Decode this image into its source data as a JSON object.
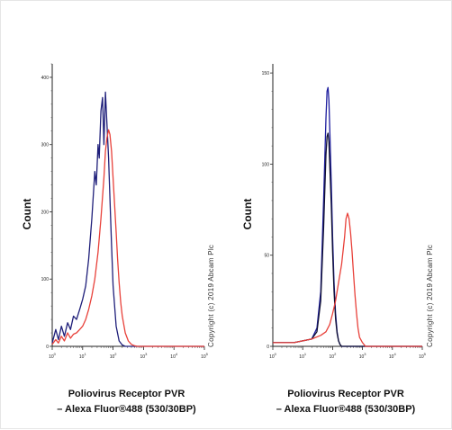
{
  "chart_data": [
    {
      "type": "line",
      "panel": "left",
      "ylabel": "Count",
      "xlabel_line1": "Poliovirus Receptor PVR",
      "xlabel_line2": "– Alexa Fluor®488 (530/30BP)",
      "x_scale": "log",
      "xlim": [
        1,
        100000
      ],
      "ylim": [
        0,
        420
      ],
      "x_ticks": [
        1,
        10,
        100,
        1000,
        10000,
        100000
      ],
      "y_ticks": [
        0,
        100,
        200,
        300,
        400
      ],
      "y_tick_labels": [
        "0",
        "100",
        "200",
        "300",
        "400"
      ],
      "grid": false,
      "series": [
        {
          "color": "#1f1f7a",
          "x": [
            1,
            1.3,
            1.6,
            2,
            2.5,
            3.2,
            4,
            5,
            6.3,
            8,
            10,
            12.6,
            15.8,
            20,
            25,
            28,
            32,
            35,
            40,
            45,
            50,
            56,
            63,
            71,
            79,
            89,
            100,
            126,
            158,
            200,
            251,
            316,
            400,
            1000,
            10000,
            100000
          ],
          "y": [
            5,
            25,
            10,
            30,
            15,
            35,
            25,
            45,
            40,
            55,
            70,
            90,
            130,
            190,
            260,
            240,
            300,
            280,
            350,
            370,
            300,
            378,
            330,
            280,
            220,
            150,
            90,
            30,
            8,
            2,
            0,
            0,
            0,
            0,
            0,
            0
          ]
        },
        {
          "color": "#e8413a",
          "x": [
            1,
            1.3,
            1.6,
            2,
            2.5,
            3.2,
            4,
            5,
            6.3,
            8,
            10,
            12.6,
            15.8,
            20,
            25,
            32,
            40,
            50,
            56,
            63,
            71,
            79,
            89,
            100,
            112,
            126,
            141,
            158,
            178,
            200,
            251,
            316,
            400,
            500,
            630,
            1000,
            10000,
            100000
          ],
          "y": [
            3,
            10,
            5,
            15,
            8,
            20,
            12,
            18,
            20,
            25,
            30,
            40,
            55,
            75,
            100,
            140,
            190,
            250,
            290,
            310,
            322,
            315,
            290,
            250,
            210,
            170,
            130,
            95,
            65,
            45,
            20,
            8,
            3,
            1,
            0,
            0,
            0,
            0
          ]
        }
      ]
    },
    {
      "type": "line",
      "panel": "right",
      "ylabel": "Count",
      "xlabel_line1": "Poliovirus Receptor PVR",
      "xlabel_line2": "– Alexa Fluor®488 (530/30BP)",
      "x_scale": "log",
      "xlim": [
        1,
        100000
      ],
      "ylim": [
        0,
        155
      ],
      "x_ticks": [
        1,
        10,
        100,
        1000,
        10000,
        100000
      ],
      "y_ticks": [
        0,
        50,
        100,
        150
      ],
      "y_tick_labels": [
        "0",
        "50",
        "100",
        "150"
      ],
      "grid": false,
      "series": [
        {
          "color": "#1d1d9e",
          "x": [
            1,
            5,
            10,
            20,
            30,
            40,
            50,
            60,
            65,
            70,
            75,
            80,
            90,
            100,
            112,
            126,
            141,
            158,
            178,
            200,
            1000,
            100000
          ],
          "y": [
            2,
            2,
            3,
            4,
            10,
            30,
            80,
            125,
            140,
            142,
            135,
            120,
            90,
            60,
            35,
            18,
            8,
            3,
            1,
            0,
            0,
            0
          ]
        },
        {
          "color": "#111133",
          "x": [
            1,
            5,
            10,
            20,
            30,
            40,
            50,
            60,
            65,
            70,
            75,
            80,
            90,
            100,
            112,
            126,
            141,
            158,
            178,
            200,
            1000,
            100000
          ],
          "y": [
            2,
            2,
            3,
            4,
            8,
            25,
            65,
            105,
            115,
            117,
            112,
            100,
            78,
            52,
            30,
            15,
            7,
            3,
            1,
            0,
            0,
            0
          ]
        },
        {
          "color": "#e8413a",
          "x": [
            1,
            5,
            10,
            20,
            40,
            60,
            80,
            100,
            126,
            158,
            200,
            251,
            282,
            316,
            355,
            400,
            447,
            500,
            562,
            631,
            708,
            794,
            1000,
            1259,
            10000,
            100000
          ],
          "y": [
            2,
            2,
            3,
            4,
            6,
            8,
            12,
            18,
            25,
            35,
            45,
            60,
            70,
            73,
            70,
            62,
            52,
            40,
            28,
            18,
            10,
            5,
            2,
            0,
            0,
            0
          ]
        }
      ]
    }
  ],
  "copyright": "Copyright (c) 2019 Abcam Plc"
}
